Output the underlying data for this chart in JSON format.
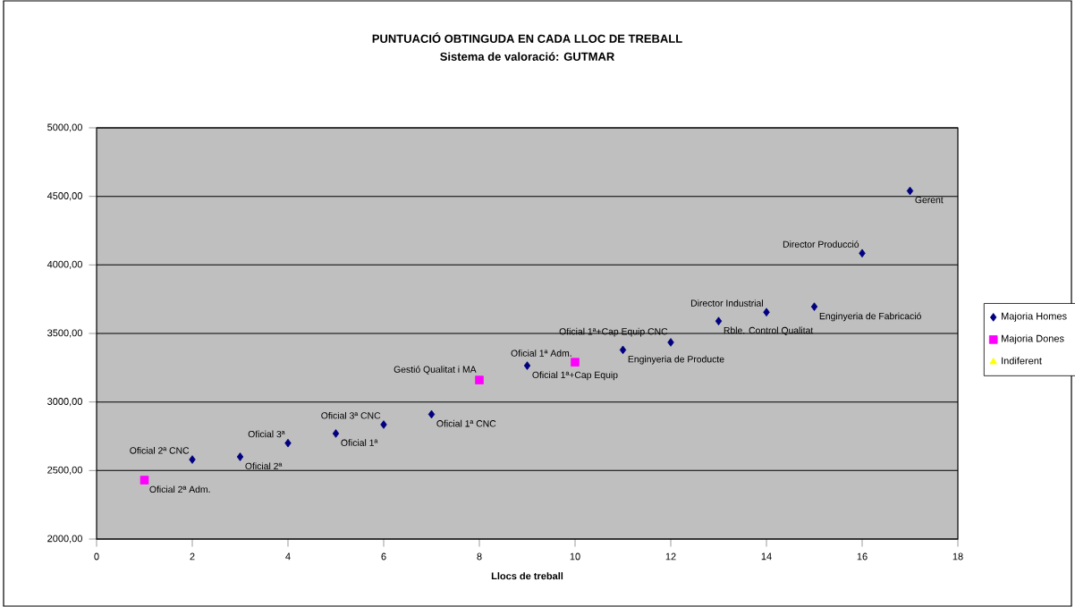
{
  "chart_data": {
    "type": "scatter",
    "title": "PUNTUACIÓ OBTINGUDA EN CADA LLOC DE TREBALL",
    "subtitle": "Sistema de valoració: GUTMAR",
    "xlabel": "Llocs de treball",
    "xlim": [
      0,
      18
    ],
    "xticks": [
      0,
      2,
      4,
      6,
      8,
      10,
      12,
      14,
      16,
      18
    ],
    "ylim": [
      2000,
      5000
    ],
    "yticks": [
      {
        "value": 2000,
        "label": "2000,00"
      },
      {
        "value": 2500,
        "label": "2500,00"
      },
      {
        "value": 3000,
        "label": "3000,00"
      },
      {
        "value": 3500,
        "label": "3500,00"
      },
      {
        "value": 4000,
        "label": "4000,00"
      },
      {
        "value": 4500,
        "label": "4500,00"
      },
      {
        "value": 5000,
        "label": "5000,00"
      }
    ],
    "grid": "y",
    "legend": "right",
    "series": [
      {
        "name": "Majoria Homes",
        "color": "#000080",
        "marker": "diamond",
        "x": [
          2,
          3,
          4,
          5,
          6,
          7,
          9,
          11,
          12,
          13,
          14,
          15,
          16,
          17
        ],
        "values": [
          2580,
          2600,
          2700,
          2770,
          2835,
          2910,
          3265,
          3380,
          3435,
          3590,
          3655,
          3695,
          4085,
          4540
        ]
      },
      {
        "name": "Majoria Dones",
        "color": "#ff00ff",
        "marker": "square",
        "x": [
          1,
          8,
          10
        ],
        "values": [
          2430,
          3160,
          3290
        ]
      },
      {
        "name": "Indiferent",
        "color": "#ffff00",
        "marker": "triangle"
      }
    ],
    "annotations": [
      {
        "text": "Oficial 2ª Adm.",
        "x": 1,
        "y": 2430
      },
      {
        "text": "Oficial 2ª CNC",
        "x": 2,
        "y": 2580
      },
      {
        "text": "Oficial 2ª",
        "x": 3,
        "y": 2600
      },
      {
        "text": "Oficial 3ª",
        "x": 4,
        "y": 2700
      },
      {
        "text": "Oficial 1ª",
        "x": 5,
        "y": 2770
      },
      {
        "text": "Oficial 3ª CNC",
        "x": 6,
        "y": 2835
      },
      {
        "text": "Oficial 1ª CNC",
        "x": 7,
        "y": 2910
      },
      {
        "text": "Gestió Qualitat i MA",
        "x": 8,
        "y": 3160
      },
      {
        "text": "Oficial 1ª+Cap Equip",
        "x": 9,
        "y": 3265
      },
      {
        "text": "Oficial 1ª Adm.",
        "x": 10,
        "y": 3290
      },
      {
        "text": "Enginyeria de Producte",
        "x": 11,
        "y": 3380
      },
      {
        "text": "Oficial 1ª+Cap Equip CNC",
        "x": 12,
        "y": 3435
      },
      {
        "text": "Rble. Control Qualitat",
        "x": 13,
        "y": 3590
      },
      {
        "text": "Director Industrial",
        "x": 14,
        "y": 3655
      },
      {
        "text": "Enginyeria de Fabricació",
        "x": 15,
        "y": 3695
      },
      {
        "text": "Director Producció",
        "x": 16,
        "y": 4085
      },
      {
        "text": "Gerent",
        "x": 17,
        "y": 4540
      }
    ]
  }
}
